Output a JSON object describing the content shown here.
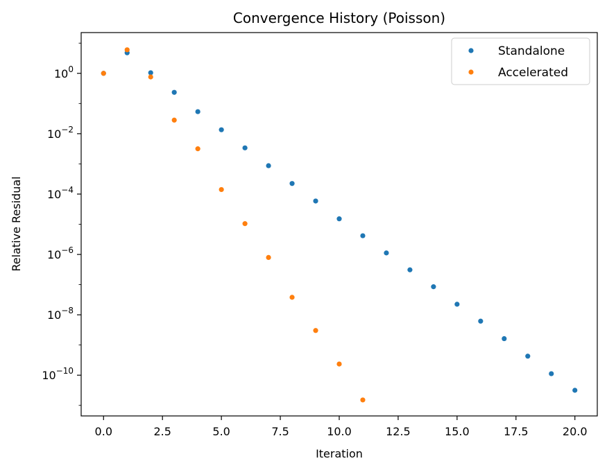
{
  "chart_data": {
    "type": "scatter",
    "title": "Convergence History (Poisson)",
    "xlabel": "Iteration",
    "ylabel": "Relative Residual",
    "xlim": [
      -0.95,
      20.95
    ],
    "yscale": "log",
    "ylim_log10": [
      -11.35,
      1.35
    ],
    "x_ticks": [
      {
        "value": 0.0,
        "label": "0.0"
      },
      {
        "value": 2.5,
        "label": "2.5"
      },
      {
        "value": 5.0,
        "label": "5.0"
      },
      {
        "value": 7.5,
        "label": "7.5"
      },
      {
        "value": 10.0,
        "label": "10.0"
      },
      {
        "value": 12.5,
        "label": "12.5"
      },
      {
        "value": 15.0,
        "label": "15.0"
      },
      {
        "value": 17.5,
        "label": "17.5"
      },
      {
        "value": 20.0,
        "label": "20.0"
      }
    ],
    "y_ticks": [
      {
        "exp": 0,
        "base": "10",
        "sup": "0"
      },
      {
        "exp": -2,
        "base": "10",
        "sup": "−2"
      },
      {
        "exp": -4,
        "base": "10",
        "sup": "−4"
      },
      {
        "exp": -6,
        "base": "10",
        "sup": "−6"
      },
      {
        "exp": -8,
        "base": "10",
        "sup": "−8"
      },
      {
        "exp": -10,
        "base": "10",
        "sup": "−10"
      }
    ],
    "legend_position": "top-right",
    "series": [
      {
        "name": "Standalone",
        "color": "#1f77b4",
        "x": [
          0,
          1,
          2,
          3,
          4,
          5,
          6,
          7,
          8,
          9,
          10,
          11,
          12,
          13,
          14,
          15,
          16,
          17,
          18,
          19,
          20
        ],
        "y_log10": [
          0.0,
          0.68,
          0.02,
          -0.63,
          -1.27,
          -1.87,
          -2.47,
          -3.06,
          -3.65,
          -4.23,
          -4.82,
          -5.38,
          -5.95,
          -6.51,
          -7.07,
          -7.65,
          -8.21,
          -8.79,
          -9.37,
          -9.95,
          -10.5
        ]
      },
      {
        "name": "Accelerated",
        "color": "#ff7f0e",
        "x": [
          0,
          1,
          2,
          3,
          4,
          5,
          6,
          7,
          8,
          9,
          10,
          11
        ],
        "y_log10": [
          0.0,
          0.78,
          -0.12,
          -1.55,
          -2.5,
          -3.85,
          -4.98,
          -6.1,
          -7.42,
          -8.52,
          -9.63,
          -10.82
        ]
      }
    ]
  }
}
